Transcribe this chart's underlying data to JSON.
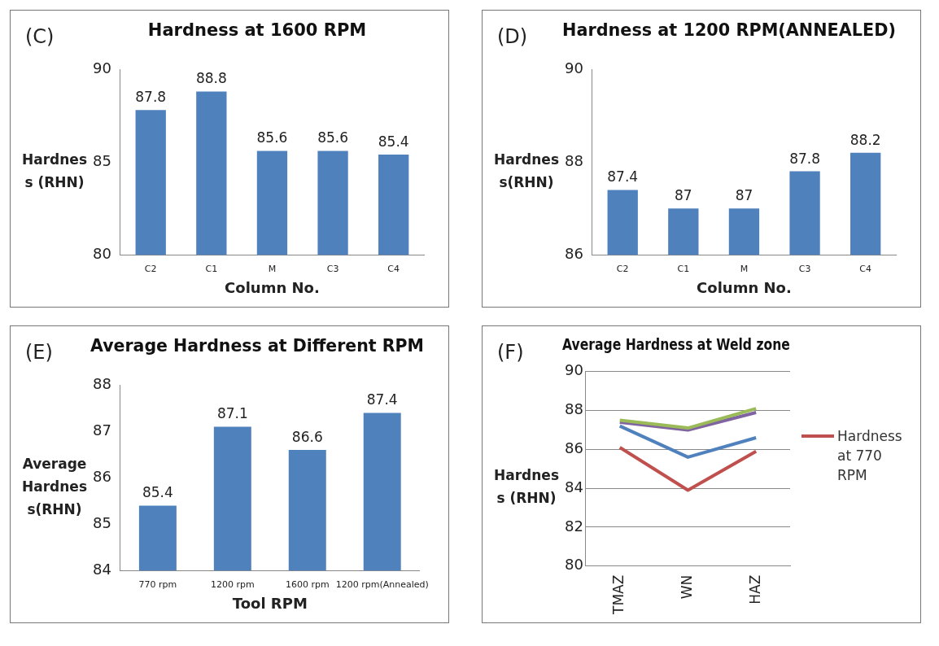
{
  "chart_data": [
    {
      "type": "bar",
      "title": "Hardness at 1600 RPM",
      "xlabel": "Column No.",
      "ylabel": "Hardness (RHN)",
      "annotations": [
        "(C)"
      ],
      "categories": [
        "C2",
        "C1",
        "M",
        "C3",
        "C4"
      ],
      "values": [
        87.8,
        88.8,
        85.6,
        85.6,
        85.4
      ],
      "color": "#4f81bd",
      "ylim": [
        80,
        90
      ],
      "yticks": [
        80,
        85,
        90
      ],
      "data_labels": true
    },
    {
      "type": "bar",
      "title": "Hardness at 1200 RPM(ANNEALED)",
      "xlabel": "Column No.",
      "ylabel": "Hardness(RHN)",
      "annotations": [
        "(D)"
      ],
      "categories": [
        "C2",
        "C1",
        "M",
        "C3",
        "C4"
      ],
      "values": [
        87.4,
        87,
        87,
        87.8,
        88.2
      ],
      "color": "#4f81bd",
      "ylim": [
        86,
        90
      ],
      "yticks": [
        86,
        88,
        90
      ],
      "data_labels": true
    },
    {
      "type": "bar",
      "title": "Average Hardness at Different RPM",
      "xlabel": "Tool RPM",
      "ylabel": "Average Hardness(RHN)",
      "annotations": [
        "(E)"
      ],
      "categories": [
        "770 rpm",
        "1200 rpm",
        "1600 rpm",
        "1200 rpm(Annealed)"
      ],
      "values": [
        85.4,
        87.1,
        86.6,
        87.4
      ],
      "color": "#4f81bd",
      "ylim": [
        84,
        88
      ],
      "yticks": [
        84,
        85,
        86,
        87,
        88
      ],
      "data_labels": true
    },
    {
      "type": "line",
      "title": "Average Hardness at Weld zone",
      "ylabel": "Hardness (RHN)",
      "annotations": [
        "(F)"
      ],
      "categories": [
        "TMAZ",
        "WN",
        "HAZ"
      ],
      "ylim": [
        80,
        90
      ],
      "yticks": [
        80,
        82,
        84,
        86,
        88,
        90
      ],
      "grid": "y",
      "legend": "right",
      "marker": "none",
      "series": [
        {
          "name": "Hardness at 770 RPM",
          "color": "#c0504d",
          "values": [
            86.1,
            83.9,
            85.9
          ]
        },
        {
          "color": "#4f81bd",
          "values": [
            87.2,
            85.6,
            86.6
          ]
        },
        {
          "color": "#9bbb59",
          "values": [
            87.5,
            87.1,
            88.1
          ]
        },
        {
          "color": "#8064a2",
          "values": [
            87.4,
            87.0,
            87.9
          ]
        }
      ]
    }
  ]
}
